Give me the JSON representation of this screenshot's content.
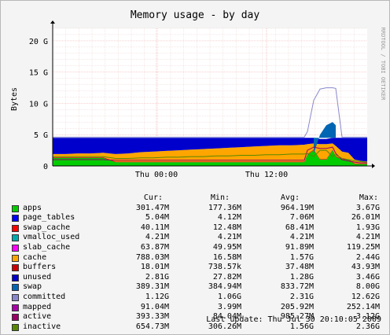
{
  "chart_data": {
    "type": "area",
    "title": "Memory usage - by day",
    "ylabel": "Bytes",
    "xlabel": "",
    "watermark": "RRDTOOL / TOBI OETIKER",
    "ylim": [
      0,
      22
    ],
    "yticks": [
      {
        "value": 0,
        "label": "0"
      },
      {
        "value": 5,
        "label": "5 G"
      },
      {
        "value": 10,
        "label": "10 G"
      },
      {
        "value": 15,
        "label": "15 G"
      },
      {
        "value": 20,
        "label": "20 G"
      }
    ],
    "xlim": [
      0,
      100
    ],
    "xticks": [
      {
        "value": 33,
        "label": "Thu 00:00"
      },
      {
        "value": 68,
        "label": "Thu 12:00"
      }
    ],
    "grid": true,
    "series": [
      {
        "name": "apps",
        "color": "#00cc00"
      },
      {
        "name": "page_tables",
        "color": "#0000ff"
      },
      {
        "name": "swap_cache",
        "color": "#ff0000"
      },
      {
        "name": "vmalloc_used",
        "color": "#00aaaa"
      },
      {
        "name": "slab_cache",
        "color": "#ff00ff"
      },
      {
        "name": "cache",
        "color": "#ffa500"
      },
      {
        "name": "buffers",
        "color": "#cc0000"
      },
      {
        "name": "unused",
        "color": "#0000cc"
      },
      {
        "name": "swap",
        "color": "#0066b3"
      },
      {
        "name": "committed",
        "color": "#8888cc"
      },
      {
        "name": "mapped",
        "color": "#aa00aa"
      },
      {
        "name": "active",
        "color": "#990066"
      },
      {
        "name": "inactive",
        "color": "#558800"
      }
    ],
    "stack": {
      "x": [
        0,
        4,
        8,
        12,
        16,
        20,
        24,
        28,
        32,
        36,
        40,
        44,
        48,
        52,
        56,
        60,
        64,
        68,
        72,
        76,
        80,
        81,
        83,
        85,
        87,
        89,
        90,
        92,
        94,
        96,
        98,
        100
      ],
      "apps": [
        1.3,
        1.3,
        1.3,
        1.3,
        1.3,
        0.6,
        0.6,
        0.6,
        0.6,
        0.6,
        0.6,
        0.6,
        0.6,
        0.6,
        0.6,
        0.6,
        0.6,
        0.6,
        0.6,
        0.6,
        0.6,
        1.8,
        2.5,
        1.0,
        1.0,
        2.5,
        1.5,
        1.0,
        1.0,
        0.3,
        0.3,
        0.3
      ],
      "buffers": [
        0.1,
        0.1,
        0.1,
        0.1,
        0.1,
        0.1,
        0.1,
        0.1,
        0.1,
        0.1,
        0.1,
        0.1,
        0.1,
        0.1,
        0.1,
        0.1,
        0.1,
        0.1,
        0.1,
        0.1,
        0.1,
        0.1,
        0.1,
        0.1,
        0.1,
        0.1,
        0.1,
        0.1,
        0.1,
        0.1,
        0.1,
        0.1
      ],
      "cache": [
        0.5,
        0.5,
        0.6,
        0.6,
        0.7,
        1.2,
        1.3,
        1.5,
        1.6,
        1.7,
        1.8,
        1.9,
        2.0,
        2.1,
        2.2,
        2.3,
        2.4,
        2.5,
        2.6,
        2.6,
        2.7,
        1.6,
        1.0,
        2.4,
        2.4,
        1.0,
        1.6,
        1.2,
        1.0,
        0.6,
        0.4,
        0.3
      ],
      "unused": [
        2.6,
        2.6,
        2.5,
        2.5,
        2.4,
        2.6,
        2.5,
        2.3,
        2.2,
        2.1,
        2.0,
        1.9,
        1.8,
        1.7,
        1.6,
        1.5,
        1.4,
        1.3,
        1.2,
        1.2,
        1.1,
        1.0,
        0.9,
        0.8,
        0.8,
        0.9,
        1.3,
        2.2,
        2.4,
        3.5,
        3.7,
        3.8
      ],
      "swap": [
        0.4,
        0.4,
        0.4,
        0.4,
        0.4,
        0.4,
        0.4,
        0.4,
        0.4,
        0.4,
        0.4,
        0.4,
        0.4,
        0.4,
        0.4,
        0.4,
        0.4,
        0.4,
        0.4,
        0.4,
        0.4,
        0.4,
        2.0,
        5.0,
        6.5,
        7.0,
        6.5,
        0.4,
        0.4,
        0.4,
        0.4,
        0.4
      ],
      "committed": [
        4.6,
        4.6,
        4.6,
        4.6,
        4.6,
        4.6,
        4.6,
        4.6,
        4.6,
        4.6,
        4.6,
        4.6,
        4.6,
        4.6,
        4.6,
        4.6,
        4.6,
        4.6,
        4.6,
        4.6,
        4.6,
        5.5,
        10.5,
        12.3,
        12.5,
        12.5,
        12.4,
        4.6,
        4.6,
        4.6,
        4.6,
        4.6
      ],
      "active": [
        1.0,
        1.0,
        1.0,
        1.0,
        1.0,
        0.9,
        0.9,
        0.9,
        0.9,
        0.9,
        0.9,
        0.9,
        0.9,
        0.9,
        0.9,
        0.9,
        0.9,
        0.9,
        0.9,
        0.9,
        0.9,
        2.5,
        3.0,
        2.8,
        2.8,
        3.0,
        2.0,
        1.0,
        0.8,
        0.6,
        0.5,
        0.5
      ],
      "inactive": [
        1.5,
        1.5,
        1.5,
        1.5,
        1.5,
        1.2,
        1.2,
        1.3,
        1.3,
        1.4,
        1.4,
        1.5,
        1.5,
        1.6,
        1.6,
        1.7,
        1.7,
        1.8,
        1.8,
        1.9,
        1.9,
        2.0,
        1.5,
        2.5,
        2.5,
        1.5,
        1.8,
        1.2,
        1.0,
        0.8,
        0.7,
        0.6
      ]
    }
  },
  "legend": {
    "headers": {
      "cur": "Cur:",
      "min": "Min:",
      "avg": "Avg:",
      "max": "Max:"
    },
    "rows": [
      {
        "name": "apps",
        "color": "#00cc00",
        "cur": "301.47M",
        "min": "177.36M",
        "avg": "964.19M",
        "max": "3.67G"
      },
      {
        "name": "page_tables",
        "color": "#0000ff",
        "cur": "5.04M",
        "min": "4.12M",
        "avg": "7.06M",
        "max": "26.01M"
      },
      {
        "name": "swap_cache",
        "color": "#ff0000",
        "cur": "40.11M",
        "min": "12.48M",
        "avg": "68.41M",
        "max": "1.93G"
      },
      {
        "name": "vmalloc_used",
        "color": "#00aaaa",
        "cur": "4.21M",
        "min": "4.21M",
        "avg": "4.21M",
        "max": "4.21M"
      },
      {
        "name": "slab_cache",
        "color": "#ff00ff",
        "cur": "63.87M",
        "min": "49.95M",
        "avg": "91.89M",
        "max": "119.25M"
      },
      {
        "name": "cache",
        "color": "#ffa500",
        "cur": "788.03M",
        "min": "16.58M",
        "avg": "1.57G",
        "max": "2.44G"
      },
      {
        "name": "buffers",
        "color": "#cc0000",
        "cur": "18.01M",
        "min": "738.57k",
        "avg": "37.48M",
        "max": "43.93M"
      },
      {
        "name": "unused",
        "color": "#0000cc",
        "cur": "2.81G",
        "min": "27.82M",
        "avg": "1.28G",
        "max": "3.46G"
      },
      {
        "name": "swap",
        "color": "#0066b3",
        "cur": "389.31M",
        "min": "384.94M",
        "avg": "833.72M",
        "max": "8.00G"
      },
      {
        "name": "committed",
        "color": "#8888cc",
        "cur": "1.12G",
        "min": "1.06G",
        "avg": "2.31G",
        "max": "12.62G"
      },
      {
        "name": "mapped",
        "color": "#aa00aa",
        "cur": "91.04M",
        "min": "3.99M",
        "avg": "205.92M",
        "max": "252.14M"
      },
      {
        "name": "active",
        "color": "#990066",
        "cur": "393.33M",
        "min": "84.04M",
        "avg": "985.27M",
        "max": "3.12G"
      },
      {
        "name": "inactive",
        "color": "#558800",
        "cur": "654.73M",
        "min": "306.26M",
        "avg": "1.56G",
        "max": "2.36G"
      }
    ]
  },
  "footer": {
    "last_update": "Last update:  Thu Jul 30 20:10:05 2009"
  }
}
